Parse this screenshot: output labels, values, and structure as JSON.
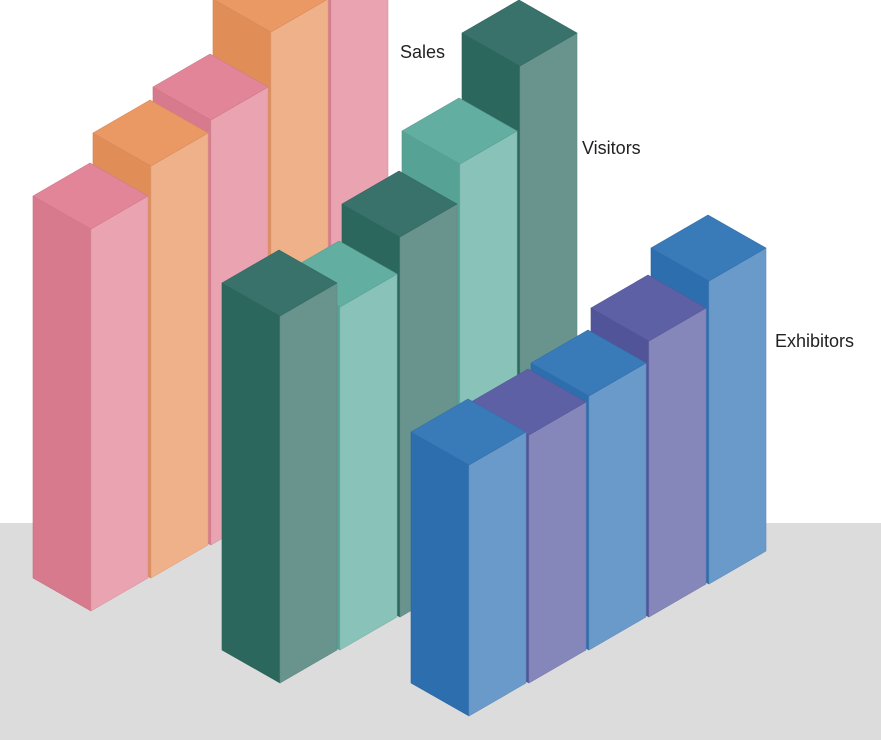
{
  "chart_data": {
    "type": "bar",
    "title": "",
    "xlabel": "",
    "ylabel": "",
    "style": "3d-isometric",
    "grid": false,
    "axes_visible": false,
    "series": [
      {
        "name": "Sales",
        "values": [
          382,
          412,
          425,
          480,
          527
        ],
        "colors": [
          "#e07f93",
          "#e9935c",
          "#e07f93",
          "#e9935c",
          "#e07f93"
        ]
      },
      {
        "name": "Visitors",
        "values": [
          367,
          343,
          380,
          420,
          485
        ],
        "colors": [
          "#2e6b62",
          "#5aaa9c",
          "#2e6b62",
          "#5aaa9c",
          "#2e6b62"
        ]
      },
      {
        "name": "Exhibitors",
        "values": [
          251,
          248,
          254,
          276,
          303
        ],
        "colors": [
          "#2f73b5",
          "#5558a0",
          "#2f73b5",
          "#5558a0",
          "#2f73b5"
        ]
      }
    ]
  },
  "labels": {
    "sales": "Sales",
    "visitors": "Visitors",
    "exhibitors": "Exhibitors"
  }
}
